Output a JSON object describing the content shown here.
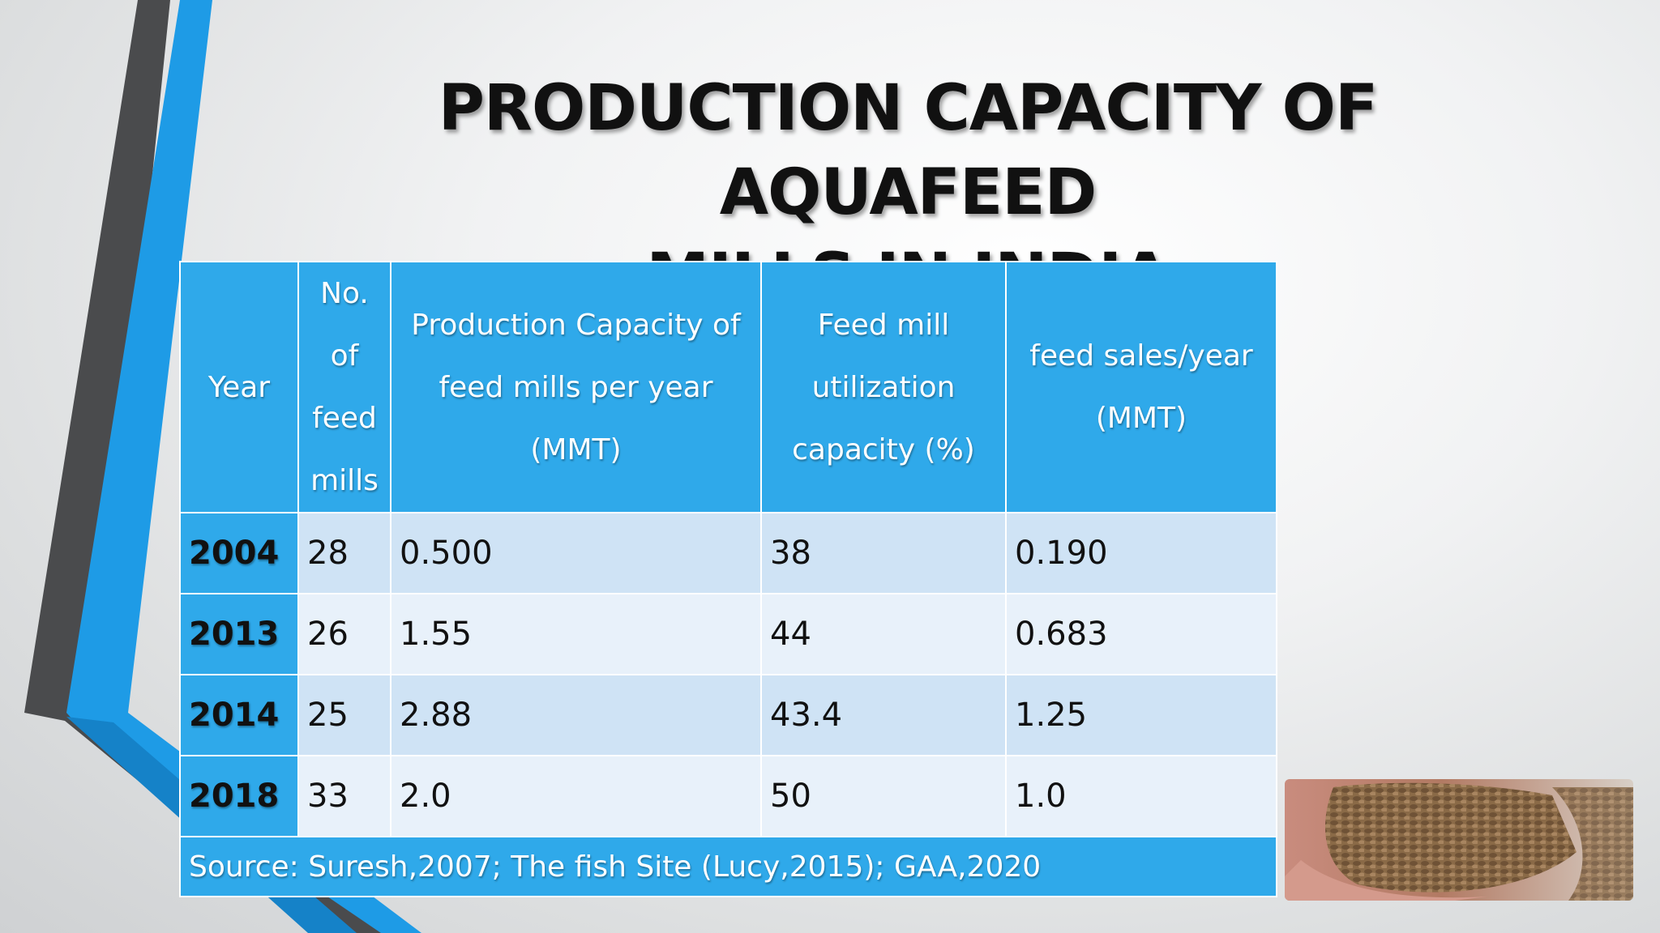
{
  "title": "PRODUCTION CAPACITY OF AQUAFEED\nMILLS IN INDIA",
  "table": {
    "headers": [
      "Year",
      "No.\nof\nfeed\nmills",
      "Production Capacity of\nfeed mills per year\n(MMT)",
      "Feed mill\nutilization\ncapacity (%)",
      "feed sales/year\n(MMT)"
    ],
    "rows": [
      [
        "2004",
        "28",
        "0.500",
        "38",
        "0.190"
      ],
      [
        "2013",
        "26",
        "1.55",
        "44",
        "0.683"
      ],
      [
        "2014",
        "25",
        "2.88",
        "43.4",
        "1.25"
      ],
      [
        "2018",
        "33",
        "2.0",
        "50",
        "1.0"
      ]
    ],
    "source": "Source: Suresh,2007; The fish Site (Lucy,2015); GAA,2020"
  },
  "colors": {
    "header_blue": "#2fa9ea",
    "row_dark": "#cfe3f5",
    "row_light": "#e8f1fa",
    "accent_blue": "#1e9be6",
    "accent_dark": "#4a4a4a"
  },
  "icons": {
    "photo": "feed-pellets-in-hand"
  }
}
